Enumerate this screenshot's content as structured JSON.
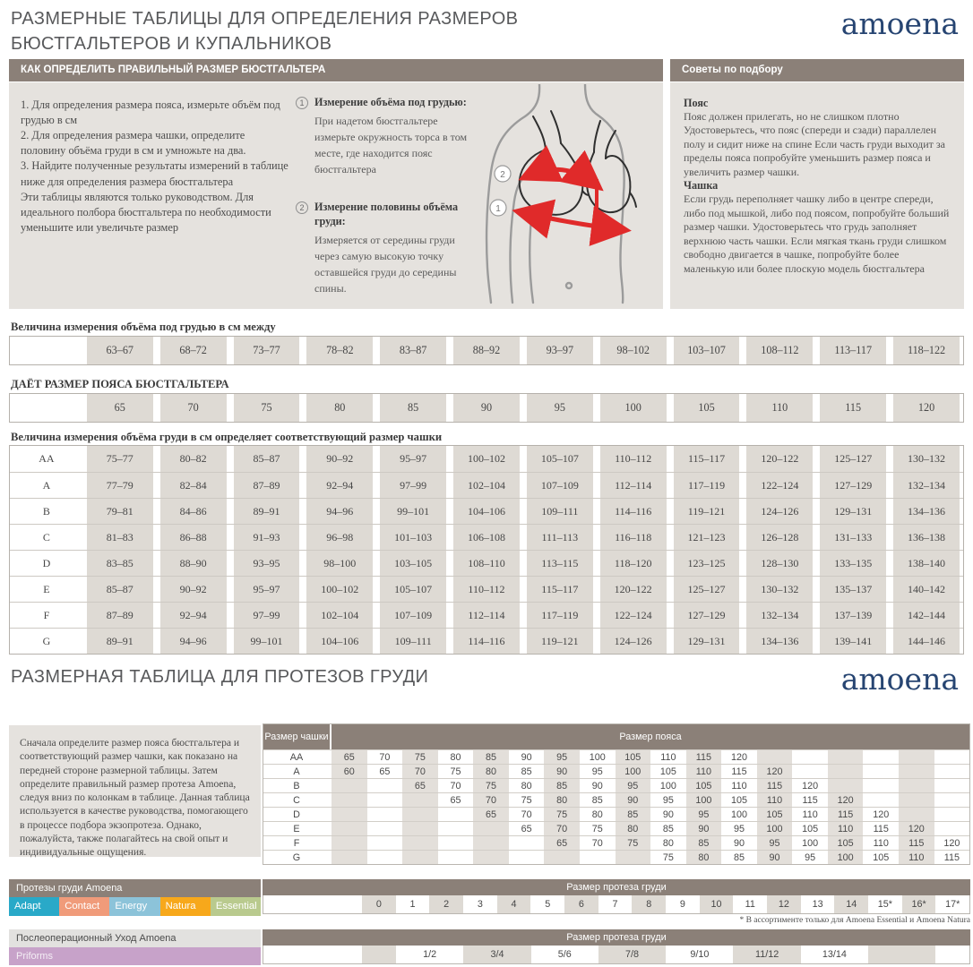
{
  "page": {
    "title_line1": "РАЗМЕРНЫЕ ТАБЛИЦЫ ДЛЯ ОПРЕДЕЛЕНИЯ РАЗМЕРОВ",
    "title_line2": "БЮСТГАЛЬТЕРОВ И КУПАЛЬНИКОВ",
    "brand": "amoena",
    "section2_title": "РАЗМЕРНАЯ ТАБЛИЦА ДЛЯ ПРОТЕЗОВ ГРУДИ"
  },
  "how_to": {
    "header": "КАК ОПРЕДЕЛИТЬ ПРАВИЛЬНЫЙ РАЗМЕР БЮСТГАЛЬТЕРА",
    "steps": [
      "1. Для определения размера пояса, измерьте объём под грудью в см",
      "2.  Для определения размера чашки, определите половину объёма груди в см и умножьте на два.",
      "3.  Найдите полученные результаты измерений в таблице ниже для определения размера бюстгальтера",
      "Эти таблицы являются только руководством. Для идеального полбора бюстгальтера по необходимости уменьшите или увеличьте размер"
    ],
    "measure1_num": "1",
    "measure1_title": "Измерение объёма под грудью:",
    "measure1_text": "При надетом бюстгальтере измерьте окружность торса в том месте, где находится пояс бюстгальтера",
    "measure2_num": "2",
    "measure2_title": "Измерение половины объёма груди:",
    "measure2_text": "Измеряется от середины груди через самую высокую точку оставшейся груди до середины спины."
  },
  "tips": {
    "header": "Советы по подбору",
    "belt_title": "Пояс",
    "belt_text": "Пояс должен прилегать, но не слишком плотно Удостоверьтесь, что пояс (спереди и сзади) параллелен полу и сидит ниже на спине Если часть груди выходит за пределы пояса попробуйте уменьшить размер пояса и увеличить размер чашки.",
    "cup_title": "Чашка",
    "cup_text": "Если грудь переполняет чашку либо в центре спереди, либо под мышкой, либо под поясом, попробуйте больший размер чашки. Удостоверьтесь что грудь заполняет верхнюю часть чашки. Если мягкая ткань груди слишком свободно двигается в чашке, попробуйте более маленькую или более плоскую модель бюстгальтера"
  },
  "underbust_table": {
    "label": "Величина измерения объёма под грудью в см между",
    "values": [
      "63–67",
      "68–72",
      "73–77",
      "78–82",
      "83–87",
      "88–92",
      "93–97",
      "98–102",
      "103–107",
      "108–112",
      "113–117",
      "118–122"
    ]
  },
  "band_table": {
    "label": "ДАЁТ РАЗМЕР ПОЯСА БЮСТГАЛЬТЕРА",
    "values": [
      "65",
      "70",
      "75",
      "80",
      "85",
      "90",
      "95",
      "100",
      "105",
      "110",
      "115",
      "120"
    ]
  },
  "cup_table": {
    "label": "Величина измерения объёма груди в см определяет соответствующий размер чашки",
    "rows": [
      {
        "cup": "AA",
        "values": [
          "75–77",
          "80–82",
          "85–87",
          "90–92",
          "95–97",
          "100–102",
          "105–107",
          "110–112",
          "115–117",
          "120–122",
          "125–127",
          "130–132"
        ]
      },
      {
        "cup": "A",
        "values": [
          "77–79",
          "82–84",
          "87–89",
          "92–94",
          "97–99",
          "102–104",
          "107–109",
          "112–114",
          "117–119",
          "122–124",
          "127–129",
          "132–134"
        ]
      },
      {
        "cup": "B",
        "values": [
          "79–81",
          "84–86",
          "89–91",
          "94–96",
          "99–101",
          "104–106",
          "109–111",
          "114–116",
          "119–121",
          "124–126",
          "129–131",
          "134–136"
        ]
      },
      {
        "cup": "C",
        "values": [
          "81–83",
          "86–88",
          "91–93",
          "96–98",
          "101–103",
          "106–108",
          "111–113",
          "116–118",
          "121–123",
          "126–128",
          "131–133",
          "136–138"
        ]
      },
      {
        "cup": "D",
        "values": [
          "83–85",
          "88–90",
          "93–95",
          "98–100",
          "103–105",
          "108–110",
          "113–115",
          "118–120",
          "123–125",
          "128–130",
          "133–135",
          "138–140"
        ]
      },
      {
        "cup": "E",
        "values": [
          "85–87",
          "90–92",
          "95–97",
          "100–102",
          "105–107",
          "110–112",
          "115–117",
          "120–122",
          "125–127",
          "130–132",
          "135–137",
          "140–142"
        ]
      },
      {
        "cup": "F",
        "values": [
          "87–89",
          "92–94",
          "97–99",
          "102–104",
          "107–109",
          "112–114",
          "117–119",
          "122–124",
          "127–129",
          "132–134",
          "137–139",
          "142–144"
        ]
      },
      {
        "cup": "G",
        "values": [
          "89–91",
          "94–96",
          "99–101",
          "104–106",
          "109–111",
          "114–116",
          "119–121",
          "124–126",
          "129–131",
          "134–136",
          "139–141",
          "144–146"
        ]
      }
    ]
  },
  "prosthesis_intro": "Сначала определите размер пояса бюстгальтера и соответствующий размер чашки, как показано на передней стороне размерной таблицы. Затем определите правильный размер протеза Amoena, следуя вниз по колонкам в таблице. Данная таблица используется в качестве руководства, помогающего в процессе подбора экзопротеза. Однако, пожалуйста, также полагайтесь на свой опыт и индивидуальные ощущения.",
  "prosthesis_table": {
    "cup_header": "Размер чашки",
    "band_header": "Размер пояса",
    "rows": [
      {
        "cup": "AA",
        "values": [
          "65",
          "70",
          "75",
          "80",
          "85",
          "90",
          "95",
          "100",
          "105",
          "110",
          "115",
          "120",
          "",
          "",
          "",
          "",
          "",
          ""
        ]
      },
      {
        "cup": "A",
        "values": [
          "60",
          "65",
          "70",
          "75",
          "80",
          "85",
          "90",
          "95",
          "100",
          "105",
          "110",
          "115",
          "120",
          "",
          "",
          "",
          "",
          ""
        ]
      },
      {
        "cup": "B",
        "values": [
          "",
          "",
          "65",
          "70",
          "75",
          "80",
          "85",
          "90",
          "95",
          "100",
          "105",
          "110",
          "115",
          "120",
          "",
          "",
          "",
          ""
        ]
      },
      {
        "cup": "C",
        "values": [
          "",
          "",
          "",
          "65",
          "70",
          "75",
          "80",
          "85",
          "90",
          "95",
          "100",
          "105",
          "110",
          "115",
          "120",
          "",
          "",
          ""
        ]
      },
      {
        "cup": "D",
        "values": [
          "",
          "",
          "",
          "",
          "65",
          "70",
          "75",
          "80",
          "85",
          "90",
          "95",
          "100",
          "105",
          "110",
          "115",
          "120",
          "",
          ""
        ]
      },
      {
        "cup": "E",
        "values": [
          "",
          "",
          "",
          "",
          "",
          "65",
          "70",
          "75",
          "80",
          "85",
          "90",
          "95",
          "100",
          "105",
          "110",
          "115",
          "120",
          ""
        ]
      },
      {
        "cup": "F",
        "values": [
          "",
          "",
          "",
          "",
          "",
          "",
          "65",
          "70",
          "75",
          "80",
          "85",
          "90",
          "95",
          "100",
          "105",
          "110",
          "115",
          "120"
        ]
      },
      {
        "cup": "G",
        "values": [
          "",
          "",
          "",
          "",
          "",
          "",
          "",
          "",
          "",
          "75",
          "80",
          "85",
          "90",
          "95",
          "100",
          "105",
          "110",
          "115"
        ]
      }
    ]
  },
  "products": {
    "header": "Протезы груди Amoena",
    "tags": [
      {
        "label": "Adapt",
        "color": "#29a9c8"
      },
      {
        "label": "Contact",
        "color": "#f09b7a"
      },
      {
        "label": "Energy",
        "color": "#8cc3d9"
      },
      {
        "label": "Natura",
        "color": "#f7a81b"
      },
      {
        "label": "Essential",
        "color": "#b9ca8e"
      }
    ]
  },
  "size_table1": {
    "header": "Размер протеза груди",
    "values": [
      "0",
      "1",
      "2",
      "3",
      "4",
      "5",
      "6",
      "7",
      "8",
      "9",
      "10",
      "11",
      "12",
      "13",
      "14",
      "15*",
      "16*",
      "17*"
    ],
    "footnote": "* В ассортименте только для  Amoena Essential и Amoena Natura"
  },
  "aftercare": {
    "header": "Послеоперационный Уход Amoena",
    "product": "Priforms",
    "product_color": "#c7a2c9"
  },
  "size_table2": {
    "header": "Размер протеза груди",
    "values": [
      "1/2",
      "3/4",
      "5/6",
      "7/8",
      "9/10",
      "11/12",
      "13/14"
    ]
  },
  "colors": {
    "taupe": "#8b8078",
    "box_bg": "#e5e2de",
    "cell_beige": "#dedad4",
    "brand_navy": "#274572",
    "arrow_red": "#e02a2a"
  }
}
